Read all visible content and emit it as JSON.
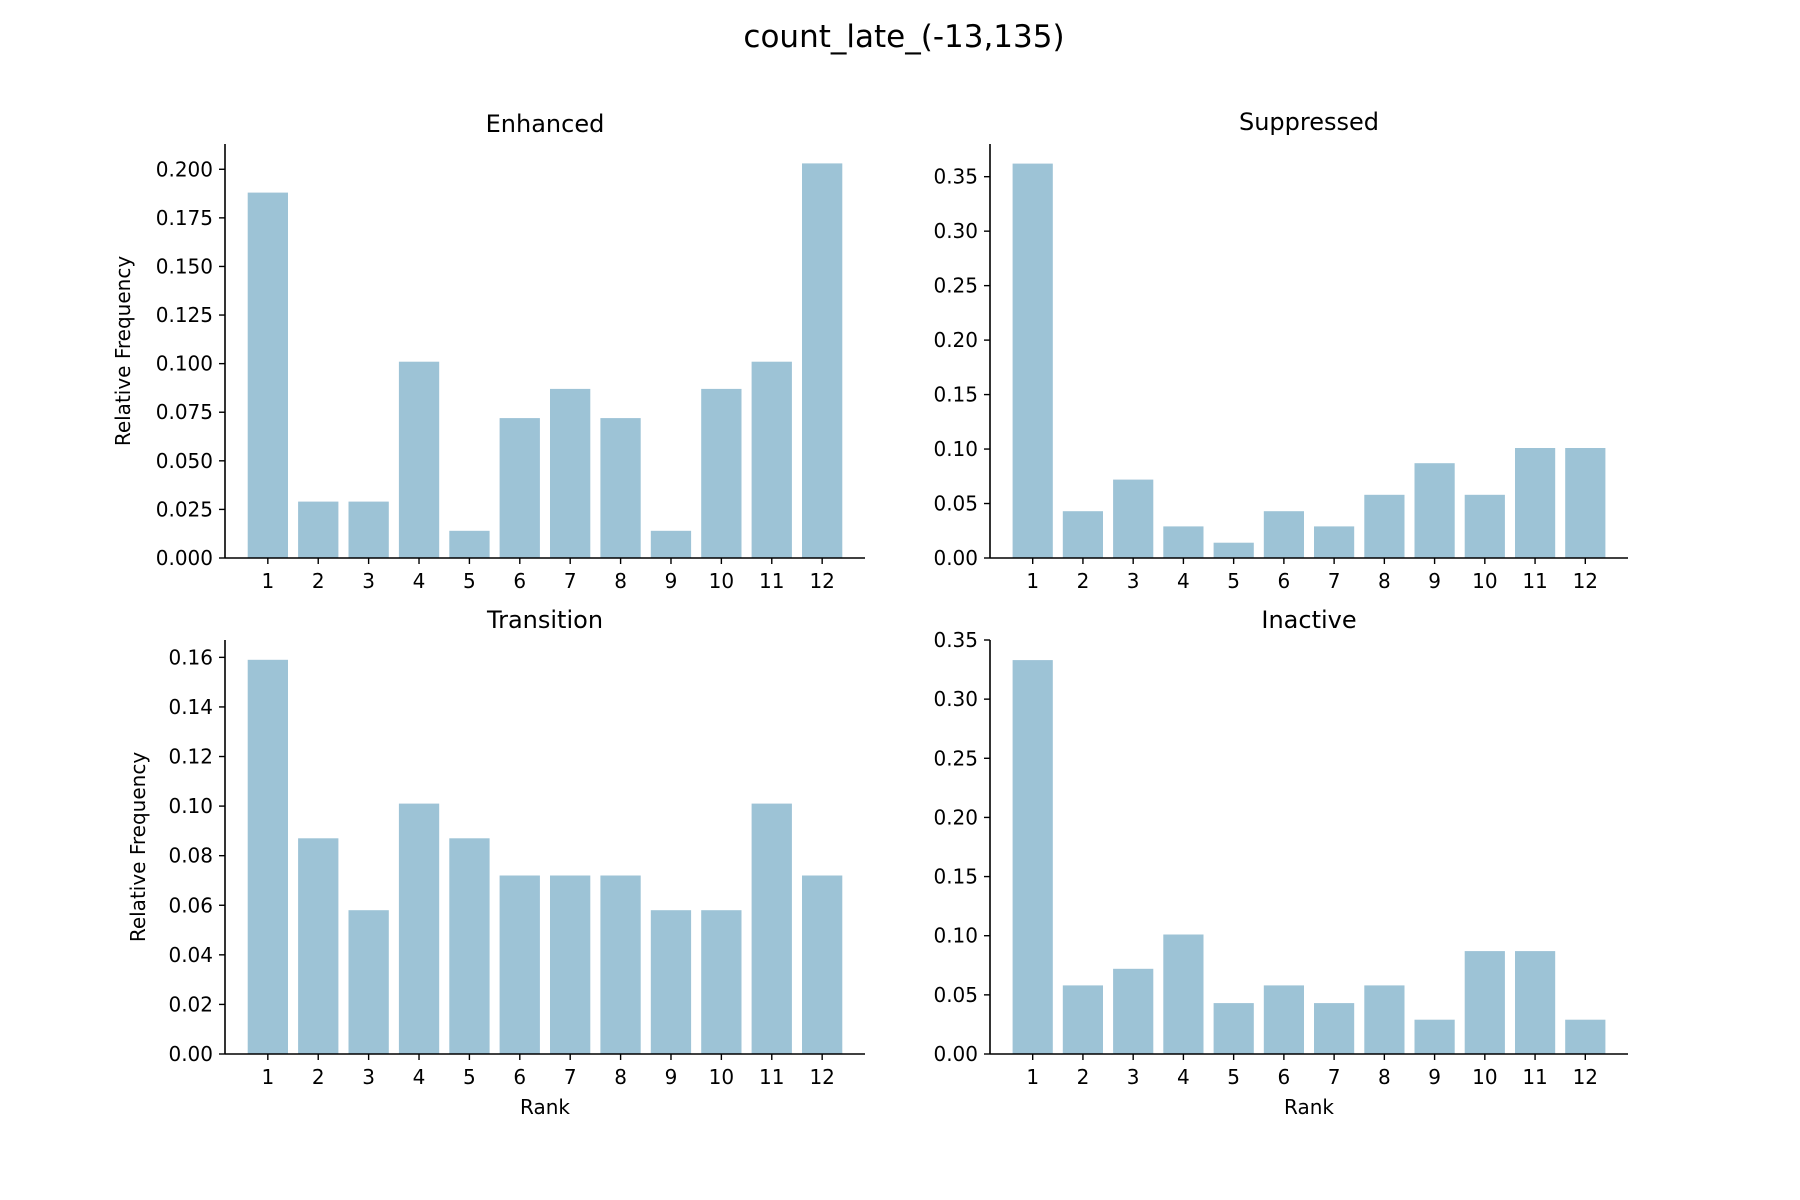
{
  "figure": {
    "title": "count_late_(-13,135)",
    "bar_color": "#9dc3d6"
  },
  "chart_data": [
    {
      "type": "bar",
      "title": "Enhanced",
      "xlabel": "",
      "ylabel": "Relative Frequency",
      "categories": [
        "1",
        "2",
        "3",
        "4",
        "5",
        "6",
        "7",
        "8",
        "9",
        "10",
        "11",
        "12"
      ],
      "values": [
        0.188,
        0.029,
        0.029,
        0.101,
        0.014,
        0.072,
        0.087,
        0.072,
        0.014,
        0.087,
        0.101,
        0.203
      ],
      "yticks": [
        "0.000",
        "0.025",
        "0.050",
        "0.075",
        "0.100",
        "0.125",
        "0.150",
        "0.175",
        "0.200"
      ],
      "ylim": [
        0,
        0.213
      ],
      "grid": false
    },
    {
      "type": "bar",
      "title": "Suppressed",
      "xlabel": "",
      "ylabel": "",
      "categories": [
        "1",
        "2",
        "3",
        "4",
        "5",
        "6",
        "7",
        "8",
        "9",
        "10",
        "11",
        "12"
      ],
      "values": [
        0.362,
        0.043,
        0.072,
        0.029,
        0.014,
        0.043,
        0.029,
        0.058,
        0.087,
        0.058,
        0.101,
        0.101
      ],
      "yticks": [
        "0.00",
        "0.05",
        "0.10",
        "0.15",
        "0.20",
        "0.25",
        "0.30",
        "0.35"
      ],
      "ylim": [
        0,
        0.38
      ],
      "grid": false
    },
    {
      "type": "bar",
      "title": "Transition",
      "xlabel": "Rank",
      "ylabel": "Relative Frequency",
      "categories": [
        "1",
        "2",
        "3",
        "4",
        "5",
        "6",
        "7",
        "8",
        "9",
        "10",
        "11",
        "12"
      ],
      "values": [
        0.159,
        0.087,
        0.058,
        0.101,
        0.087,
        0.072,
        0.072,
        0.072,
        0.058,
        0.058,
        0.101,
        0.072
      ],
      "yticks": [
        "0.00",
        "0.02",
        "0.04",
        "0.06",
        "0.08",
        "0.10",
        "0.12",
        "0.14",
        "0.16"
      ],
      "ylim": [
        0,
        0.167
      ],
      "grid": false
    },
    {
      "type": "bar",
      "title": "Inactive",
      "xlabel": "Rank",
      "ylabel": "",
      "categories": [
        "1",
        "2",
        "3",
        "4",
        "5",
        "6",
        "7",
        "8",
        "9",
        "10",
        "11",
        "12"
      ],
      "values": [
        0.333,
        0.058,
        0.072,
        0.101,
        0.043,
        0.058,
        0.043,
        0.058,
        0.029,
        0.087,
        0.087,
        0.029
      ],
      "yticks": [
        "0.00",
        "0.05",
        "0.10",
        "0.15",
        "0.20",
        "0.25",
        "0.30",
        "0.35"
      ],
      "ylim": [
        0,
        0.35
      ],
      "grid": false
    }
  ]
}
